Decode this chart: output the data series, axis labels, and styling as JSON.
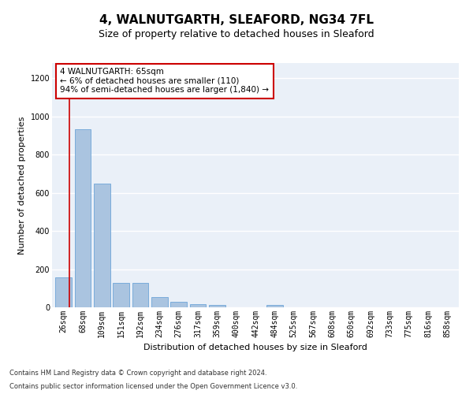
{
  "title": "4, WALNUTGARTH, SLEAFORD, NG34 7FL",
  "subtitle": "Size of property relative to detached houses in Sleaford",
  "xlabel": "Distribution of detached houses by size in Sleaford",
  "ylabel": "Number of detached properties",
  "footnote1": "Contains HM Land Registry data © Crown copyright and database right 2024.",
  "footnote2": "Contains public sector information licensed under the Open Government Licence v3.0.",
  "bar_labels": [
    "26sqm",
    "68sqm",
    "109sqm",
    "151sqm",
    "192sqm",
    "234sqm",
    "276sqm",
    "317sqm",
    "359sqm",
    "400sqm",
    "442sqm",
    "484sqm",
    "525sqm",
    "567sqm",
    "608sqm",
    "650sqm",
    "692sqm",
    "733sqm",
    "775sqm",
    "816sqm",
    "858sqm"
  ],
  "bar_values": [
    155,
    935,
    650,
    130,
    130,
    55,
    30,
    15,
    12,
    0,
    0,
    13,
    0,
    0,
    0,
    0,
    0,
    0,
    0,
    0,
    0
  ],
  "bar_color": "#aac4e0",
  "bar_edge_color": "#5b9bd5",
  "highlight_color": "#cc0000",
  "annotation_text": "4 WALNUTGARTH: 65sqm\n← 6% of detached houses are smaller (110)\n94% of semi-detached houses are larger (1,840) →",
  "annotation_box_color": "#ffffff",
  "annotation_box_edge_color": "#cc0000",
  "ylim": [
    0,
    1280
  ],
  "yticks": [
    0,
    200,
    400,
    600,
    800,
    1000,
    1200
  ],
  "bg_color": "#eaf0f8",
  "grid_color": "#ffffff",
  "title_fontsize": 11,
  "subtitle_fontsize": 9,
  "axis_label_fontsize": 8,
  "tick_fontsize": 7,
  "annotation_fontsize": 7.5
}
